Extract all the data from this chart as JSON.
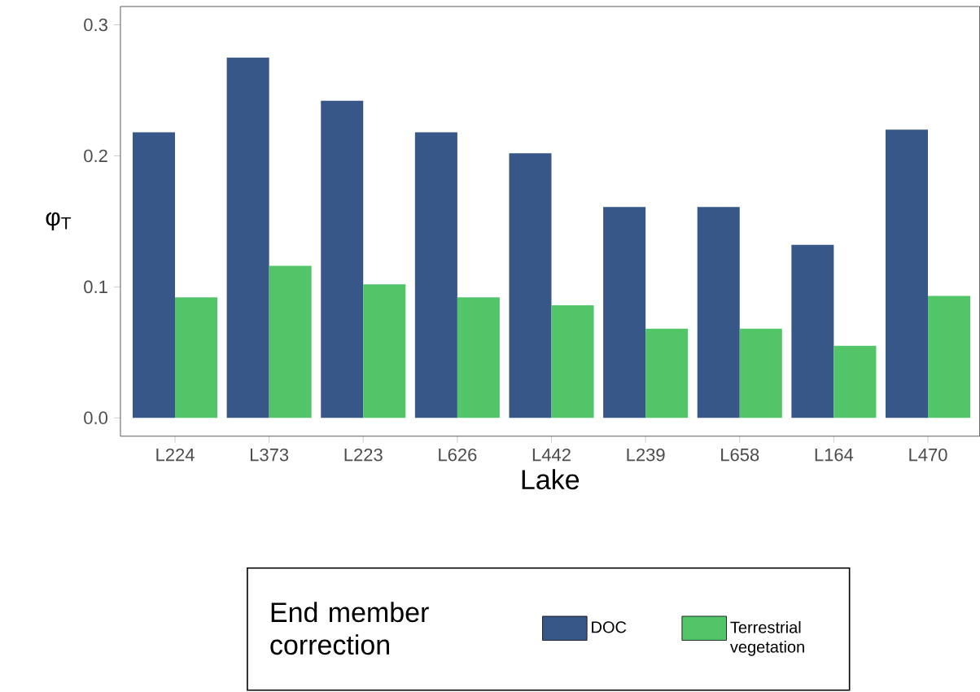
{
  "chart_data": {
    "type": "bar",
    "xlabel": "Lake",
    "ylabel": "φ$_{T}$",
    "legend_title": "End member correction",
    "categories": [
      "L224",
      "L373",
      "L223",
      "L626",
      "L442",
      "L239",
      "L658",
      "L164",
      "L470"
    ],
    "series": [
      {
        "name": "DOC",
        "color": "#375789",
        "values": [
          0.218,
          0.275,
          0.242,
          0.218,
          0.202,
          0.161,
          0.161,
          0.132,
          0.22
        ]
      },
      {
        "name": "Terrestrial vegetation",
        "color": "#52c569",
        "values": [
          0.092,
          0.116,
          0.102,
          0.092,
          0.086,
          0.068,
          0.068,
          0.055,
          0.093
        ]
      }
    ],
    "ylim": [
      -0.014,
      0.314
    ],
    "yticks": [
      {
        "value": 0,
        "label": "0.0"
      },
      {
        "value": 0.1,
        "label": "0.1"
      },
      {
        "value": 0.2,
        "label": "0.2"
      },
      {
        "value": 0.3,
        "label": "0.3"
      }
    ],
    "grid": false,
    "legend": "bottom"
  }
}
